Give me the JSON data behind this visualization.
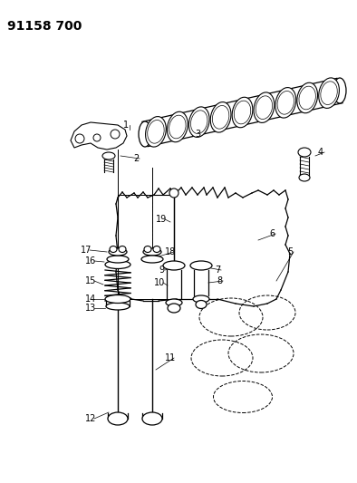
{
  "title": "91158 700",
  "bg_color": "#ffffff",
  "fig_width": 3.94,
  "fig_height": 5.33,
  "dpi": 100
}
